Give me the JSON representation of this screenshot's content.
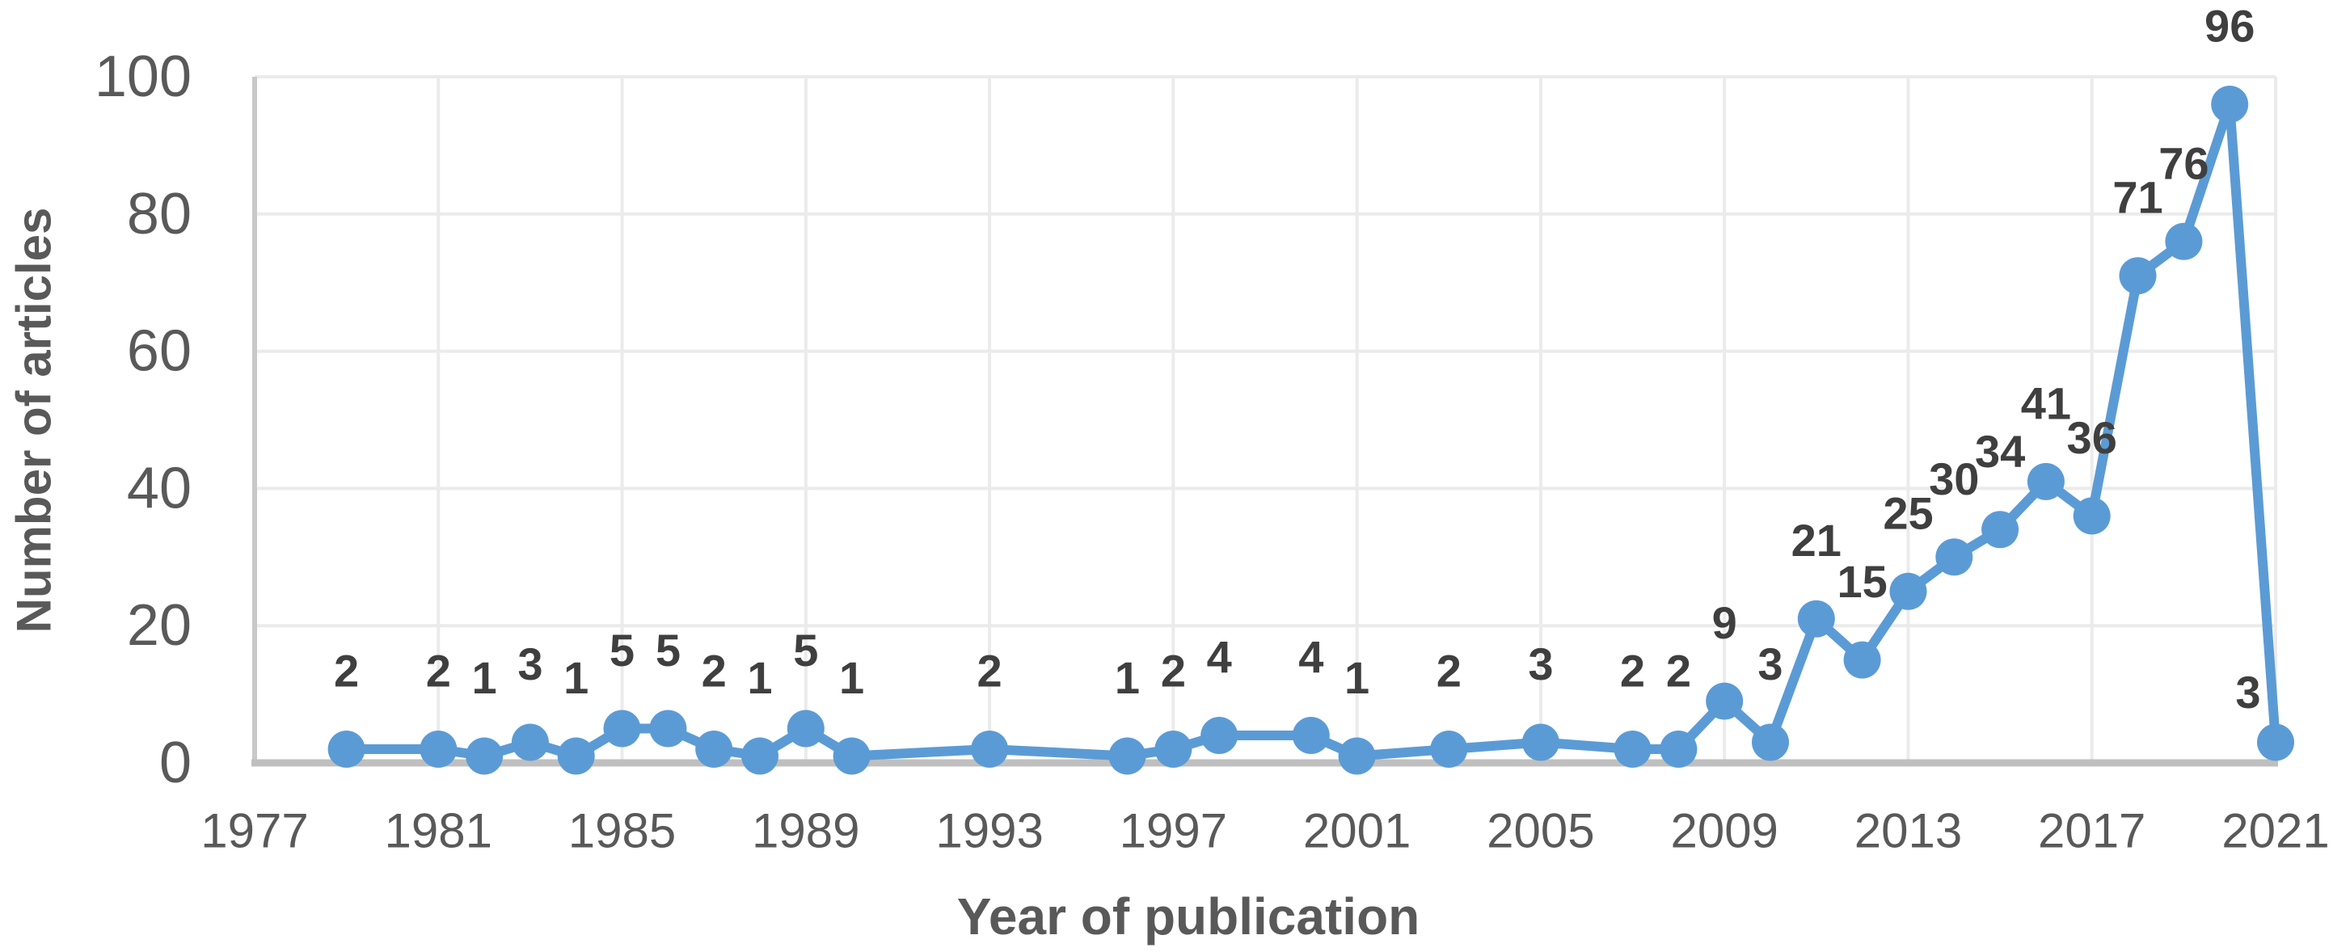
{
  "chart_data": {
    "type": "line",
    "title": "",
    "xlabel": "Year of publication",
    "ylabel": "Number of articles",
    "series": [
      {
        "name": "Number of articles",
        "points": [
          [
            1979,
            2
          ],
          [
            1981,
            2
          ],
          [
            1982,
            1
          ],
          [
            1983,
            3
          ],
          [
            1984,
            1
          ],
          [
            1985,
            5
          ],
          [
            1986,
            5
          ],
          [
            1987,
            2
          ],
          [
            1988,
            1
          ],
          [
            1989,
            5
          ],
          [
            1990,
            1
          ],
          [
            1993,
            2
          ],
          [
            1996,
            1
          ],
          [
            1997,
            2
          ],
          [
            1998,
            4
          ],
          [
            2000,
            4
          ],
          [
            2001,
            1
          ],
          [
            2003,
            2
          ],
          [
            2005,
            3
          ],
          [
            2007,
            2
          ],
          [
            2008,
            2
          ],
          [
            2009,
            9
          ],
          [
            2010,
            3
          ],
          [
            2011,
            21
          ],
          [
            2012,
            15
          ],
          [
            2013,
            25
          ],
          [
            2014,
            30
          ],
          [
            2015,
            34
          ],
          [
            2016,
            41
          ],
          [
            2017,
            36
          ],
          [
            2018,
            71
          ],
          [
            2019,
            76
          ],
          [
            2020,
            96
          ],
          [
            2021,
            3
          ]
        ]
      }
    ],
    "x_ticks": [
      1977,
      1981,
      1985,
      1989,
      1993,
      1997,
      2001,
      2005,
      2009,
      2013,
      2017,
      2021
    ],
    "y_ticks": [
      0,
      20,
      40,
      60,
      80,
      100
    ],
    "xlim": [
      1977,
      2021
    ],
    "ylim": [
      0,
      100
    ],
    "grid": true,
    "legend_position": "none",
    "data_labels_shown": true,
    "colors": {
      "series": "#5b9bd5",
      "data_label": "#3f3f3f",
      "tick_label": "#595959",
      "axis_title": "#595959",
      "gridline": "#ebebeb",
      "y_axis_line": "#c8c8c8",
      "x_axis_line": "#bfbfbf",
      "background": "#ffffff"
    }
  }
}
